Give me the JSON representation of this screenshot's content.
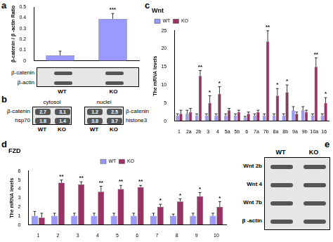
{
  "chart_data": [
    {
      "panel": "a",
      "type": "bar",
      "y_label": "β-catenin / β -actin Ratio",
      "categories": [
        "WT",
        "KO"
      ],
      "values": [
        0.05,
        0.39
      ],
      "errors": [
        0.04,
        0.05
      ],
      "color": "#9999ff",
      "ylim": [
        0,
        0.5
      ],
      "yticks": [
        0,
        0.1,
        0.2,
        0.3,
        0.4,
        0.5
      ],
      "grid": false,
      "tick_labels": "y",
      "annotations": [
        {
          "category": "KO",
          "text": "***"
        }
      ]
    },
    {
      "panel": "c",
      "type": "bar",
      "title": "Wnt",
      "y_label": "The mRNA levels",
      "categories": [
        "1",
        "2a",
        "2b",
        "3",
        "4",
        "5a",
        "5b",
        "6",
        "7a",
        "7b",
        "8a",
        "8b",
        "9a",
        "9b",
        "10a",
        "16"
      ],
      "series": [
        {
          "name": "WT",
          "color": "#9999ff",
          "values": [
            1.5,
            2,
            1.5,
            1.5,
            1.5,
            1.5,
            1.5,
            1,
            1.5,
            1.5,
            1.5,
            1.5,
            3,
            3,
            1.5,
            1.5
          ],
          "errors": [
            0.5,
            1,
            0.5,
            0.5,
            0.5,
            0.5,
            0.5,
            0.3,
            0.5,
            0.5,
            0.5,
            0.5,
            1,
            1,
            0.5,
            0.5
          ]
        },
        {
          "name": "KO",
          "color": "#993366",
          "values": [
            2,
            2.5,
            12.5,
            5,
            7.5,
            3,
            2.5,
            2,
            2.5,
            22,
            7,
            8,
            2,
            2.5,
            15,
            5
          ],
          "errors": [
            1,
            1,
            1.5,
            2,
            2,
            0.5,
            0.5,
            0.5,
            0.5,
            3,
            2,
            2,
            0.5,
            0.5,
            2.5,
            1.5
          ]
        }
      ],
      "ylim": [
        0,
        25
      ],
      "yticks": [
        0,
        5,
        10,
        15,
        20,
        25
      ],
      "grid": false,
      "legend": "top-left",
      "annotations": [
        {
          "category": "2b",
          "text": "**"
        },
        {
          "category": "3",
          "text": "*"
        },
        {
          "category": "4",
          "text": "*"
        },
        {
          "category": "7b",
          "text": "**"
        },
        {
          "category": "8a",
          "text": "*"
        },
        {
          "category": "8b",
          "text": "*"
        },
        {
          "category": "10a",
          "text": "**"
        },
        {
          "category": "16",
          "text": "*"
        }
      ]
    },
    {
      "panel": "d",
      "type": "bar",
      "title": "FZD",
      "y_label": "The mRNA levels",
      "categories": [
        "1",
        "2",
        "3",
        "4",
        "5",
        "6",
        "7",
        "8",
        "9",
        "10"
      ],
      "series": [
        {
          "name": "WT",
          "color": "#9999ff",
          "values": [
            1,
            1,
            1,
            1,
            1,
            1,
            1,
            1,
            1,
            1
          ],
          "errors": [
            0.5,
            0.3,
            0.3,
            0.3,
            0.3,
            0.3,
            0.3,
            0.2,
            0.3,
            0.3
          ]
        },
        {
          "name": "KO",
          "color": "#993366",
          "values": [
            0.8,
            4.7,
            4.5,
            3.7,
            4,
            4.2,
            2,
            2.6,
            3.2,
            2
          ],
          "errors": [
            0.5,
            0.3,
            0.3,
            0.6,
            0.4,
            0.2,
            0.3,
            0.3,
            0.4,
            0.6
          ]
        }
      ],
      "ylim": [
        0,
        6
      ],
      "yticks": [
        0,
        1,
        2,
        3,
        4,
        5,
        6
      ],
      "grid": false,
      "legend": "top",
      "annotations": [
        {
          "category": "2",
          "text": "**"
        },
        {
          "category": "3",
          "text": "**"
        },
        {
          "category": "4",
          "text": "**"
        },
        {
          "category": "5",
          "text": "**"
        },
        {
          "category": "6",
          "text": "**"
        },
        {
          "category": "7",
          "text": "*"
        },
        {
          "category": "8",
          "text": "*"
        },
        {
          "category": "9",
          "text": "*"
        },
        {
          "category": "10",
          "text": "*"
        }
      ]
    }
  ],
  "blots": [
    {
      "attached_to": "a",
      "rows": [
        "β-catenin",
        "β-actin"
      ]
    },
    {
      "panel": "b",
      "groups": [
        {
          "title": "cytosol",
          "lanes": [
            "WT",
            "KO"
          ],
          "rows": [
            {
              "label": "β-catenin",
              "values": [
                2.7,
                3.1
              ]
            },
            {
              "label": "hsp70",
              "values": [
                1.8,
                1.4
              ]
            }
          ]
        },
        {
          "title": "nuclei",
          "lanes": [
            "WT",
            "KO"
          ],
          "rows": [
            {
              "label": "β-catenin",
              "values": [
                1.2,
                2.5
              ]
            },
            {
              "label": "histone3",
              "values": [
                3.8,
                3.7
              ]
            }
          ]
        }
      ]
    },
    {
      "panel": "e",
      "lanes": [
        "WT",
        "KO"
      ],
      "rows": [
        "Wnt 2b",
        "Wnt 4",
        "Wnt 7b",
        "β -actin"
      ]
    }
  ]
}
